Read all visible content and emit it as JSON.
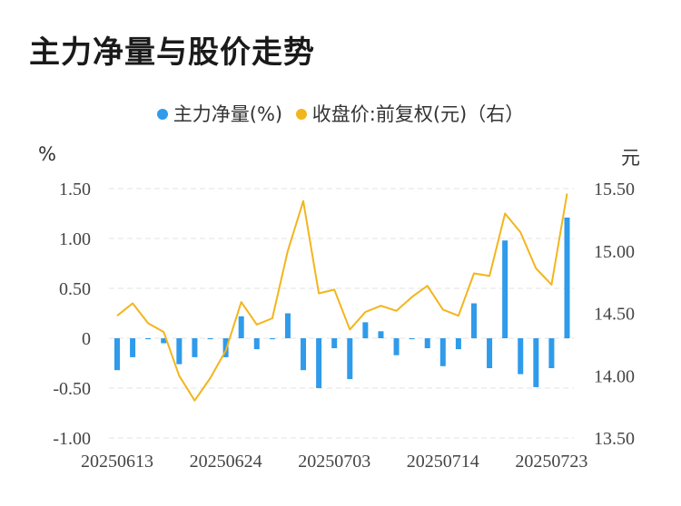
{
  "title": "主力净量与股价走势",
  "legend": {
    "series1": "主力净量(%)",
    "series2": "收盘价:前复权(元)（右）"
  },
  "units": {
    "left": "%",
    "right": "元"
  },
  "colors": {
    "bar": "#2F9BEA",
    "line": "#F3B51C",
    "grid": "#e3e3e3"
  },
  "chart_data": {
    "type": "bar+line",
    "x_tick_labels": [
      "20250613",
      "20250624",
      "20250703",
      "20250714",
      "20250723"
    ],
    "y_left": {
      "min": -1.0,
      "max": 1.5,
      "ticks": [
        "1.50",
        "1.00",
        "0.50",
        "0",
        "-0.50",
        "-1.00"
      ]
    },
    "y_right": {
      "min": 13.5,
      "max": 15.5,
      "ticks": [
        "15.50",
        "15.00",
        "14.50",
        "14.00",
        "13.50"
      ]
    },
    "series": [
      {
        "name": "主力净量(%)",
        "type": "bar",
        "axis": "left",
        "values": [
          -0.32,
          -0.19,
          -0.01,
          -0.05,
          -0.26,
          -0.19,
          -0.01,
          -0.19,
          0.22,
          -0.11,
          -0.01,
          0.25,
          -0.32,
          -0.5,
          -0.1,
          -0.41,
          0.16,
          0.07,
          -0.17,
          -0.01,
          -0.1,
          -0.28,
          -0.11,
          0.35,
          -0.3,
          0.98,
          -0.36,
          -0.49,
          -0.3,
          1.21
        ]
      },
      {
        "name": "收盘价:前复权(元)（右）",
        "type": "line",
        "axis": "right",
        "values": [
          14.48,
          14.58,
          14.42,
          14.35,
          14.0,
          13.8,
          13.98,
          14.2,
          14.59,
          14.41,
          14.46,
          15.0,
          15.4,
          14.66,
          14.69,
          14.37,
          14.51,
          14.56,
          14.52,
          14.63,
          14.72,
          14.53,
          14.48,
          14.82,
          14.8,
          15.3,
          15.15,
          14.86,
          14.73,
          15.46
        ]
      }
    ]
  }
}
